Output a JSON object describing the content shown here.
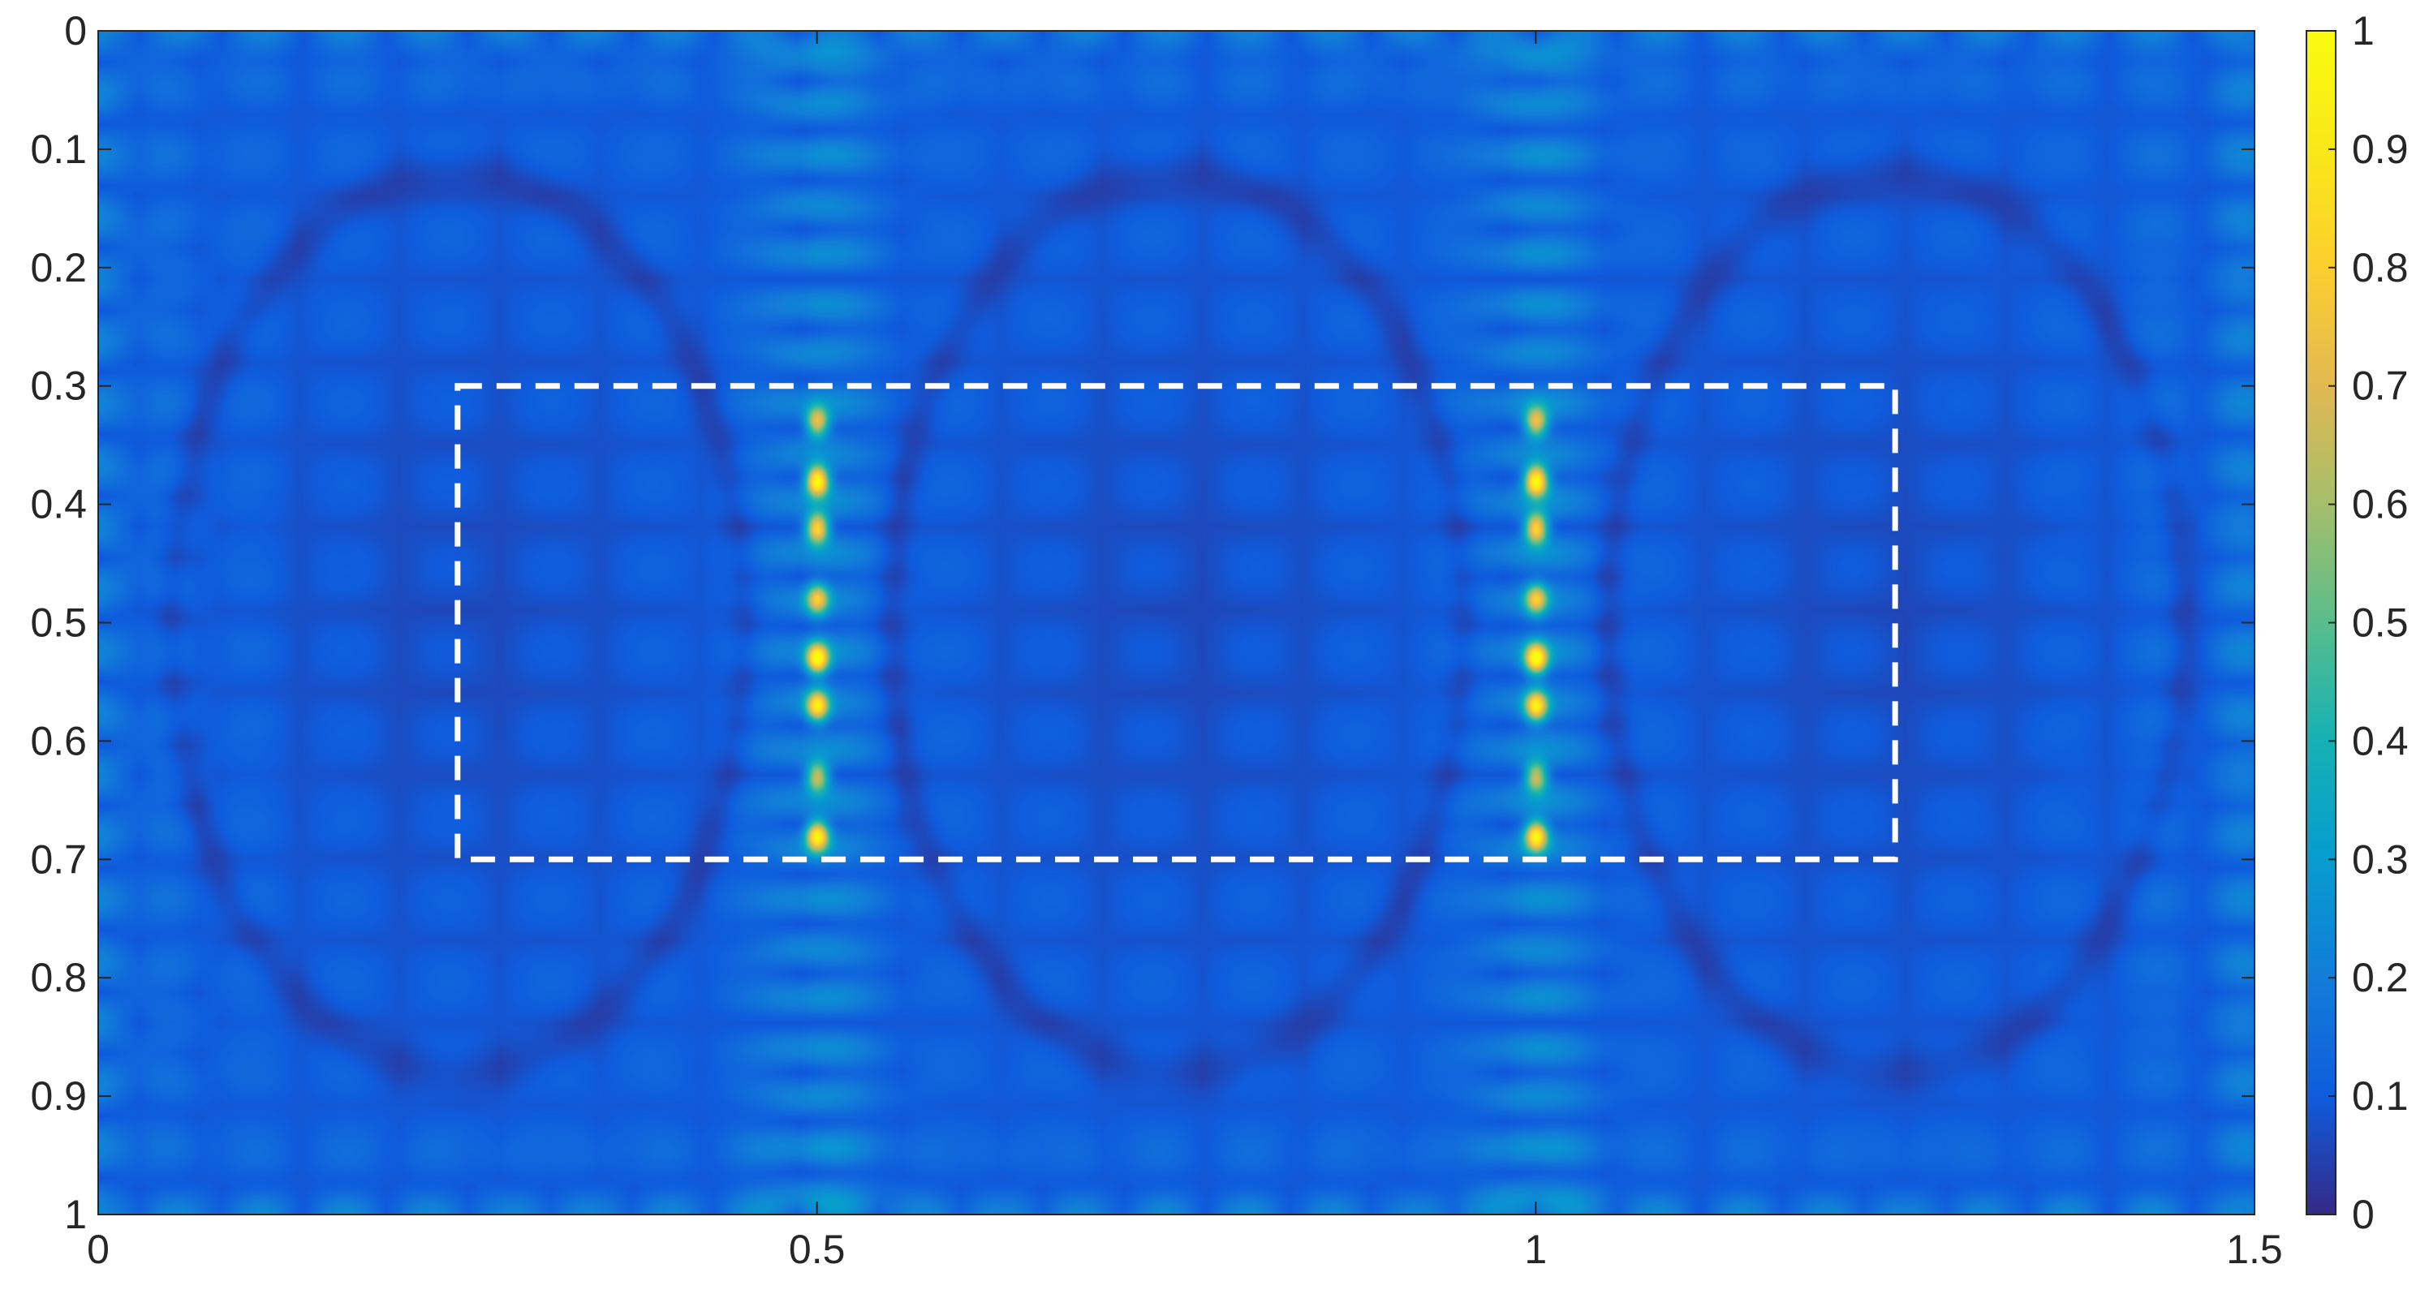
{
  "chart_data": {
    "type": "heatmap",
    "title": "",
    "xlabel": "",
    "ylabel": "",
    "xlim": [
      0,
      1.5
    ],
    "ylim": [
      1,
      0
    ],
    "y_axis_reversed": true,
    "x_ticks": [
      "0",
      "0.5",
      "1",
      "1.5"
    ],
    "x_tick_values": [
      0,
      0.5,
      1,
      1.5
    ],
    "y_ticks": [
      "0",
      "0.1",
      "0.2",
      "0.3",
      "0.4",
      "0.5",
      "0.6",
      "0.7",
      "0.8",
      "0.9",
      "1"
    ],
    "y_tick_values": [
      0,
      0.1,
      0.2,
      0.3,
      0.4,
      0.5,
      0.6,
      0.7,
      0.8,
      0.9,
      1
    ],
    "colormap": "parula",
    "colorbar": {
      "range": [
        0,
        1
      ],
      "ticks": [
        "0",
        "0.1",
        "0.2",
        "0.3",
        "0.4",
        "0.5",
        "0.6",
        "0.7",
        "0.8",
        "0.9",
        "1"
      ],
      "tick_values": [
        0,
        0.1,
        0.2,
        0.3,
        0.4,
        0.5,
        0.6,
        0.7,
        0.8,
        0.9,
        1
      ],
      "placement": "right"
    },
    "grid": false,
    "annotations": [
      {
        "type": "dashed-rectangle",
        "color": "#ffffff",
        "x_range": [
          0.25,
          1.25
        ],
        "y_range": [
          0.3,
          0.7
        ]
      }
    ],
    "hotspot_columns_x": [
      0.5,
      1.0
    ],
    "hotspot_peaks_y": [
      0.33,
      0.38,
      0.42,
      0.48,
      0.53,
      0.57,
      0.63,
      0.68
    ],
    "hotspot_peak_values": [
      0.72,
      1.0,
      0.85,
      0.7,
      0.95,
      0.85,
      0.68,
      0.92
    ]
  }
}
